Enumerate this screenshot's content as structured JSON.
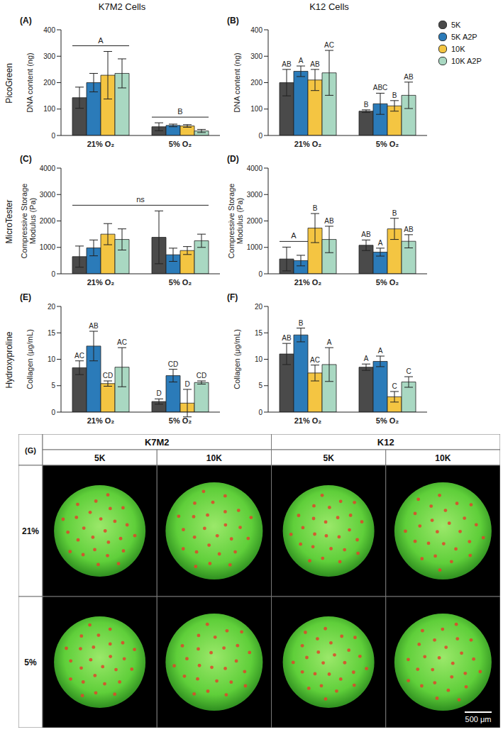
{
  "column_titles": [
    "K7M2 Cells",
    "K12 Cells"
  ],
  "row_labels": [
    "PicoGreen",
    "MicroTester",
    "Hydroxyproline"
  ],
  "chart_data": [
    {
      "type": "bar",
      "title": "(A)",
      "y_label": "DNA content (ng)",
      "categories": [
        "21% O₂",
        "5% O₂"
      ],
      "ylim": [
        0,
        400
      ],
      "yticks": [
        0,
        100,
        200,
        300,
        400
      ],
      "series": [
        {
          "name": "5K",
          "color": "#4a4a4a",
          "values": [
            143,
            33
          ],
          "errors": [
            40,
            15
          ]
        },
        {
          "name": "5K A2P",
          "color": "#2b7bb9",
          "values": [
            200,
            38
          ],
          "errors": [
            35,
            5
          ]
        },
        {
          "name": "10K",
          "color": "#f4c542",
          "values": [
            228,
            36
          ],
          "errors": [
            90,
            5
          ]
        },
        {
          "name": "10K A2P",
          "color": "#a9d8c2",
          "values": [
            235,
            17
          ],
          "errors": [
            55,
            6
          ]
        }
      ],
      "annotations": [
        {
          "text": "A",
          "categories": [
            "21% O₂"
          ],
          "series": [
            "5K",
            "5K A2P",
            "10K",
            "10K A2P"
          ]
        },
        {
          "text": "B",
          "categories": [
            "5% O₂"
          ],
          "series": [
            "5K",
            "5K A2P",
            "10K",
            "10K A2P"
          ]
        }
      ]
    },
    {
      "type": "bar",
      "title": "(B)",
      "y_label": "DNA content (ng)",
      "categories": [
        "21% O₂",
        "5% O₂"
      ],
      "ylim": [
        0,
        400
      ],
      "yticks": [
        0,
        100,
        200,
        300,
        400
      ],
      "legend": "right",
      "series": [
        {
          "name": "5K",
          "color": "#4a4a4a",
          "values": [
            200,
            92
          ],
          "errors": [
            50,
            5
          ],
          "labels": [
            "AB",
            "B"
          ]
        },
        {
          "name": "5K A2P",
          "color": "#2b7bb9",
          "values": [
            243,
            120
          ],
          "errors": [
            20,
            40
          ],
          "labels": [
            "A",
            "ABC"
          ]
        },
        {
          "name": "10K",
          "color": "#f4c542",
          "values": [
            210,
            112
          ],
          "errors": [
            40,
            20
          ],
          "labels": [
            "AB",
            "B"
          ]
        },
        {
          "name": "10K A2P",
          "color": "#a9d8c2",
          "values": [
            237,
            152
          ],
          "errors": [
            85,
            50
          ],
          "labels": [
            "AC",
            "AB"
          ]
        }
      ]
    },
    {
      "type": "bar",
      "title": "(C)",
      "y_label": "Compressive Storage Modulus (Pa)",
      "categories": [
        "21% O₂",
        "5% O₂"
      ],
      "ylim": [
        0,
        4000
      ],
      "yticks": [
        0,
        1000,
        2000,
        3000,
        4000
      ],
      "series": [
        {
          "name": "5K",
          "color": "#4a4a4a",
          "values": [
            650,
            1380
          ],
          "errors": [
            400,
            1000
          ]
        },
        {
          "name": "5K A2P",
          "color": "#2b7bb9",
          "values": [
            980,
            720
          ],
          "errors": [
            300,
            250
          ]
        },
        {
          "name": "10K",
          "color": "#f4c542",
          "values": [
            1500,
            880
          ],
          "errors": [
            400,
            150
          ]
        },
        {
          "name": "10K A2P",
          "color": "#a9d8c2",
          "values": [
            1300,
            1250
          ],
          "errors": [
            400,
            250
          ]
        }
      ],
      "annotations": [
        {
          "text": "ns",
          "categories": [
            "21% O₂",
            "5% O₂"
          ],
          "series": [
            "5K",
            "5K A2P",
            "10K",
            "10K A2P"
          ]
        }
      ]
    },
    {
      "type": "bar",
      "title": "(D)",
      "y_label": "Compressive Storage Modulus (Pa)",
      "categories": [
        "21% O₂",
        "5% O₂"
      ],
      "ylim": [
        0,
        4000
      ],
      "yticks": [
        0,
        1000,
        2000,
        3000,
        4000
      ],
      "series": [
        {
          "name": "5K",
          "color": "#4a4a4a",
          "values": [
            560,
            1080
          ],
          "errors": [
            450,
            200
          ],
          "labels": [
            null,
            "AB"
          ]
        },
        {
          "name": "5K A2P",
          "color": "#2b7bb9",
          "values": [
            500,
            820
          ],
          "errors": [
            200,
            150
          ],
          "labels": [
            null,
            "A"
          ]
        },
        {
          "name": "10K",
          "color": "#f4c542",
          "values": [
            1730,
            1700
          ],
          "errors": [
            550,
            400
          ],
          "labels": [
            "B",
            "B"
          ]
        },
        {
          "name": "10K A2P",
          "color": "#a9d8c2",
          "values": [
            1300,
            1230
          ],
          "errors": [
            500,
            250
          ],
          "labels": [
            "AB",
            "AB"
          ]
        }
      ],
      "annotations": [
        {
          "text": "A",
          "categories": [
            "21% O₂"
          ],
          "series": [
            "5K",
            "5K A2P"
          ]
        }
      ]
    },
    {
      "type": "bar",
      "title": "(E)",
      "y_label": "Collagen (μg/mL)",
      "categories": [
        "21% O₂",
        "5% O₂"
      ],
      "ylim": [
        0,
        20
      ],
      "yticks": [
        0,
        5,
        10,
        15,
        20
      ],
      "series": [
        {
          "name": "5K",
          "color": "#4a4a4a",
          "values": [
            8.4,
            2.0
          ],
          "errors": [
            1.3,
            0.5
          ],
          "labels": [
            "AC",
            "D"
          ]
        },
        {
          "name": "5K A2P",
          "color": "#2b7bb9",
          "values": [
            12.5,
            6.9
          ],
          "errors": [
            2.8,
            1.2
          ],
          "labels": [
            "AB",
            "CD"
          ]
        },
        {
          "name": "10K",
          "color": "#f4c542",
          "values": [
            5.4,
            1.7
          ],
          "errors": [
            0.5,
            2.6
          ],
          "labels": [
            "CD",
            "D"
          ]
        },
        {
          "name": "10K A2P",
          "color": "#a9d8c2",
          "values": [
            8.5,
            5.6
          ],
          "errors": [
            3.7,
            0.3
          ],
          "labels": [
            "AC",
            "CD"
          ]
        }
      ]
    },
    {
      "type": "bar",
      "title": "(F)",
      "y_label": "Collagen (μg/mL)",
      "categories": [
        "21% O₂",
        "5% O₂"
      ],
      "ylim": [
        0,
        20
      ],
      "yticks": [
        0,
        5,
        10,
        15,
        20
      ],
      "series": [
        {
          "name": "5K",
          "color": "#4a4a4a",
          "values": [
            11.0,
            8.5
          ],
          "errors": [
            2.0,
            0.6
          ],
          "labels": [
            "AB",
            "A"
          ]
        },
        {
          "name": "5K A2P",
          "color": "#2b7bb9",
          "values": [
            14.6,
            9.6
          ],
          "errors": [
            1.3,
            1.0
          ],
          "labels": [
            "B",
            "A"
          ]
        },
        {
          "name": "10K",
          "color": "#f4c542",
          "values": [
            7.4,
            2.9
          ],
          "errors": [
            1.5,
            1.0
          ],
          "labels": [
            "AC",
            "C"
          ]
        },
        {
          "name": "10K A2P",
          "color": "#a9d8c2",
          "values": [
            9.0,
            5.7
          ],
          "errors": [
            3.2,
            1.0
          ],
          "labels": [
            "A",
            "C"
          ]
        }
      ]
    }
  ],
  "image_panel": {
    "title": "(G)",
    "groups": [
      {
        "label": "K7M2",
        "columns": [
          "5K",
          "10K"
        ]
      },
      {
        "label": "K12",
        "columns": [
          "5K",
          "10K"
        ]
      }
    ],
    "rows": [
      "21%",
      "5%"
    ],
    "scale_bar": "500 μm"
  }
}
